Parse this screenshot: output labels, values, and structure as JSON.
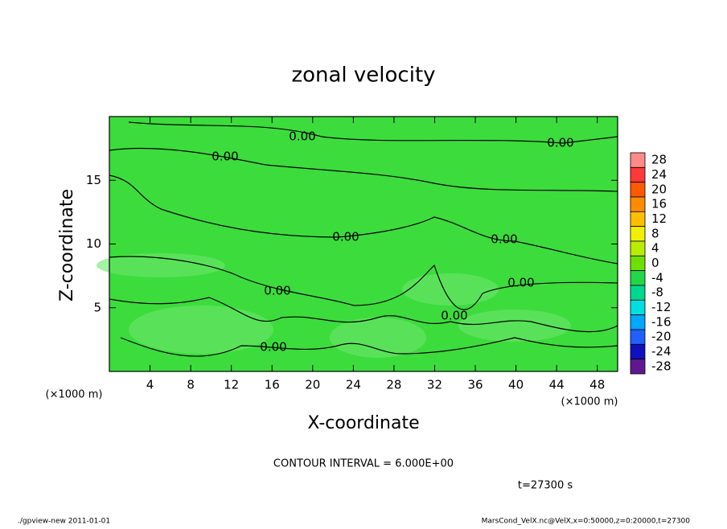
{
  "chart_data": {
    "type": "contour",
    "title": "zonal velocity",
    "xlabel": "X-coordinate",
    "ylabel": "Z-coordinate",
    "x_unit_label": "(×1000 m)",
    "y_unit_label": "(×1000 m)",
    "xlim": [
      0,
      50
    ],
    "xticks": [
      4,
      8,
      12,
      16,
      20,
      24,
      28,
      32,
      36,
      40,
      44,
      48
    ],
    "ylim": [
      0,
      20
    ],
    "yticks": [
      5,
      10,
      15
    ],
    "contour_labels": [
      "0.00",
      "0.00",
      "0.00",
      "0.00",
      "0.00",
      "0.00",
      "0.00",
      "0.00",
      "0.00"
    ],
    "colorbar_levels": [
      28,
      24,
      20,
      16,
      12,
      8,
      4,
      0,
      -4,
      -8,
      -12,
      -16,
      -20,
      -24,
      -28
    ],
    "colorbar_colors": [
      "#ff8a8a",
      "#ff3838",
      "#ff5a00",
      "#ff8c00",
      "#ffbe00",
      "#f0f000",
      "#b8ec00",
      "#6ee000",
      "#22d848",
      "#00d890",
      "#00e0e0",
      "#00a8ff",
      "#2060ff",
      "#1010c0",
      "#601890"
    ],
    "field_color": "#3cdc3c",
    "contour_interval_text": "CONTOUR INTERVAL = 6.000E+00",
    "time_text": "t=27300 s",
    "footer_left": "./gpview-new  2011-01-01",
    "footer_right": "MarsCond_VelX.nc@VelX,x=0:50000,z=0:20000,t=27300"
  }
}
